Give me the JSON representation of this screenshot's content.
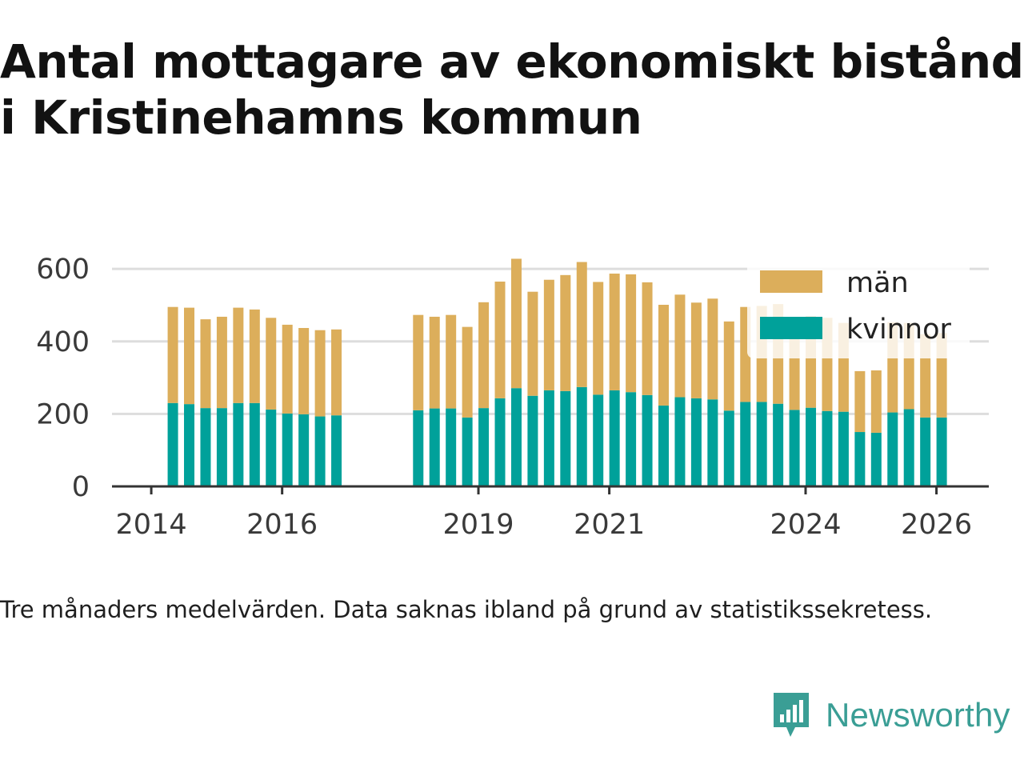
{
  "title_lines": [
    "Antal mottagare av ekonomiskt bistånd",
    "i Kristinehamns kommun"
  ],
  "note": "Tre månaders medelvärden. Data saknas ibland på grund av statistikssekretess.",
  "brand": {
    "name": "Newsworthy",
    "icon": "newsworthy-logo-icon",
    "color": "#3a9e95"
  },
  "colors": {
    "man": "#dcae5b",
    "kvinnor": "#00a19a",
    "grid": "#dddddd",
    "axis": "#333333"
  },
  "chart_data": {
    "type": "bar",
    "stacked": true,
    "title": "Antal mottagare av ekonomiskt bistånd i Kristinehamns kommun",
    "xlabel": "",
    "ylabel": "",
    "ylim": [
      0,
      640
    ],
    "yticks": [
      0,
      200,
      400,
      600
    ],
    "xticks": [
      "2014",
      "2016",
      "2019",
      "2021",
      "2024",
      "2026"
    ],
    "xtick_values": [
      2014.0,
      2016.0,
      2019.0,
      2021.0,
      2024.0,
      2026.0
    ],
    "xlim": [
      2013.4,
      2026.8
    ],
    "legend": [
      "män",
      "kvinnor"
    ],
    "legend_position": "top-right",
    "x": [
      2014.33,
      2014.58,
      2014.83,
      2015.08,
      2015.33,
      2015.58,
      2015.83,
      2016.08,
      2016.33,
      2016.58,
      2016.83,
      2018.08,
      2018.33,
      2018.58,
      2018.83,
      2019.08,
      2019.33,
      2019.58,
      2019.83,
      2020.08,
      2020.33,
      2020.58,
      2020.83,
      2021.08,
      2021.33,
      2021.58,
      2021.83,
      2022.08,
      2022.33,
      2022.58,
      2022.83,
      2023.08,
      2023.33,
      2023.58,
      2023.83,
      2024.08,
      2024.33,
      2024.58,
      2024.83,
      2025.08,
      2025.33,
      2025.58,
      2025.83,
      2026.08
    ],
    "series": [
      {
        "name": "kvinnor",
        "values": [
          230,
          227,
          216,
          216,
          230,
          230,
          212,
          201,
          199,
          193,
          196,
          210,
          215,
          215,
          190,
          216,
          243,
          271,
          250,
          265,
          263,
          274,
          253,
          265,
          260,
          252,
          223,
          246,
          243,
          240,
          209,
          233,
          233,
          228,
          211,
          217,
          208,
          206,
          150,
          148,
          204,
          213,
          190,
          190
        ]
      },
      {
        "name": "män",
        "values": [
          265,
          266,
          245,
          252,
          263,
          258,
          253,
          245,
          238,
          238,
          237,
          263,
          253,
          258,
          250,
          292,
          322,
          357,
          287,
          305,
          320,
          345,
          311,
          322,
          325,
          311,
          278,
          283,
          264,
          278,
          246,
          262,
          265,
          275,
          220,
          253,
          257,
          245,
          168,
          172,
          249,
          238,
          230,
          233
        ]
      }
    ]
  }
}
